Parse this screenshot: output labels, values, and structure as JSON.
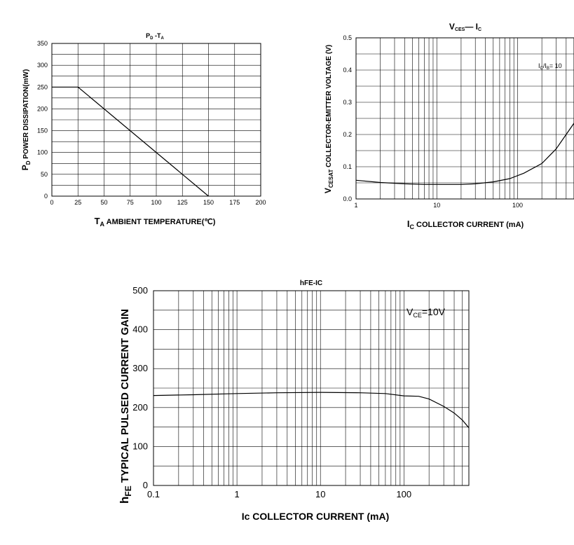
{
  "chart_data": [
    {
      "type": "line",
      "title_main": "P",
      "title_main_sub": "D",
      "title_sep": " -T",
      "title_sep_sub": "A",
      "xlabel": "T",
      "xlabel_sub": "A",
      "xlabel_rest": " AMBIENT TEMPERATURE(℃)",
      "ylabel": "P",
      "ylabel_sub": "D",
      "ylabel_rest": " POWER DISSIPATION(mW)",
      "xlim": [
        0,
        200
      ],
      "ylim": [
        0,
        350
      ],
      "xticks": [
        "0",
        "25",
        "50",
        "75",
        "100",
        "125",
        "150",
        "175",
        "200"
      ],
      "yticks": [
        "0",
        "50",
        "100",
        "150",
        "200",
        "250",
        "300",
        "350"
      ],
      "grid": true,
      "x": [
        0,
        25,
        150
      ],
      "y": [
        250,
        250,
        0
      ]
    },
    {
      "type": "line",
      "title_main": "V",
      "title_main_sub": "CES",
      "title_sep": "— I",
      "title_sep_sub": "C",
      "xlabel": "I",
      "xlabel_sub": "C",
      "xlabel_rest": " COLLECTOR CURRENT  (mA)",
      "ylabel": "V",
      "ylabel_sub": "CESAT",
      "ylabel_rest": " COLLECTOR-EMITTER VOLTAGE (V)",
      "xscale": "log",
      "xlim": [
        1,
        500
      ],
      "ylim": [
        0,
        0.5
      ],
      "xticks": [
        "1",
        "10",
        "100"
      ],
      "yticks": [
        "0.0",
        "0.1",
        "0.2",
        "0.3",
        "0.4",
        "0.5"
      ],
      "grid": true,
      "annotation_main": "I",
      "annotation_sub1": "C",
      "annotation_mid": "/I",
      "annotation_sub2": "B",
      "annotation_rest": "= 10",
      "x": [
        1,
        2,
        4,
        7,
        10,
        20,
        30,
        50,
        80,
        120,
        200,
        300,
        500
      ],
      "y": [
        0.058,
        0.051,
        0.047,
        0.045,
        0.045,
        0.045,
        0.047,
        0.053,
        0.063,
        0.08,
        0.11,
        0.155,
        0.235
      ]
    },
    {
      "type": "line",
      "title": "hFE-IC",
      "xlabel": "Ic  COLLECTOR CURRENT  (mA)",
      "ylabel": "h",
      "ylabel_sub": "FE",
      "ylabel_rest": " TYPICAL PULSED CURRENT GAIN",
      "xscale": "log",
      "xlim": [
        0.1,
        600
      ],
      "ylim": [
        0,
        500
      ],
      "xticks": [
        "0.1",
        "1",
        "10",
        "100"
      ],
      "yticks": [
        "0",
        "100",
        "200",
        "300",
        "400",
        "500"
      ],
      "grid": true,
      "annotation_main": "V",
      "annotation_sub1": "CE",
      "annotation_rest": "=10V",
      "x": [
        0.1,
        0.3,
        1,
        3,
        10,
        30,
        60,
        100,
        150,
        200,
        300,
        400,
        500,
        600
      ],
      "y": [
        231,
        233,
        236,
        238,
        239,
        238,
        236,
        230,
        229,
        222,
        203,
        186,
        168,
        148
      ]
    }
  ]
}
